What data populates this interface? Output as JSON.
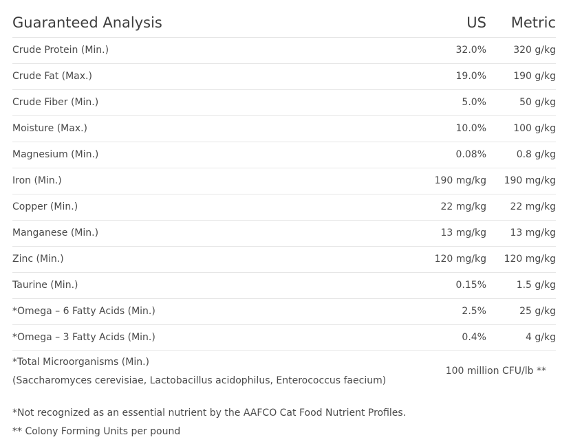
{
  "table": {
    "title": "Guaranteed Analysis",
    "columns": [
      "US",
      "Metric"
    ],
    "rows": [
      [
        "Crude Protein (Min.)",
        "32.0%",
        "320 g/kg"
      ],
      [
        "Crude Fat (Max.)",
        "19.0%",
        "190 g/kg"
      ],
      [
        "Crude Fiber (Min.)",
        "5.0%",
        "50 g/kg"
      ],
      [
        "Moisture (Max.)",
        "10.0%",
        "100 g/kg"
      ],
      [
        "Magnesium (Min.)",
        "0.08%",
        "0.8 g/kg"
      ],
      [
        "Iron (Min.)",
        "190 mg/kg",
        "190 mg/kg"
      ],
      [
        "Copper (Min.)",
        "22 mg/kg",
        "22 mg/kg"
      ],
      [
        "Manganese (Min.)",
        "13 mg/kg",
        "13 mg/kg"
      ],
      [
        "Zinc (Min.)",
        "120 mg/kg",
        "120 mg/kg"
      ],
      [
        "Taurine (Min.)",
        "0.15%",
        "1.5 g/kg"
      ],
      [
        "*Omega – 6 Fatty Acids (Min.)",
        "2.5%",
        "25 g/kg"
      ],
      [
        "*Omega – 3 Fatty Acids (Min.)",
        "0.4%",
        "4 g/kg"
      ]
    ],
    "special_row": {
      "label": "*Total Microorganisms (Min.)",
      "sublabel": "(Saccharomyces cerevisiae, Lactobacillus acidophilus, Enterococcus faecium)",
      "value": "100 million CFU/lb **"
    }
  },
  "footnotes": [
    "*Not recognized as an essential nutrient by the AAFCO Cat Food Nutrient Profiles.",
    "** Colony Forming Units per pound"
  ]
}
